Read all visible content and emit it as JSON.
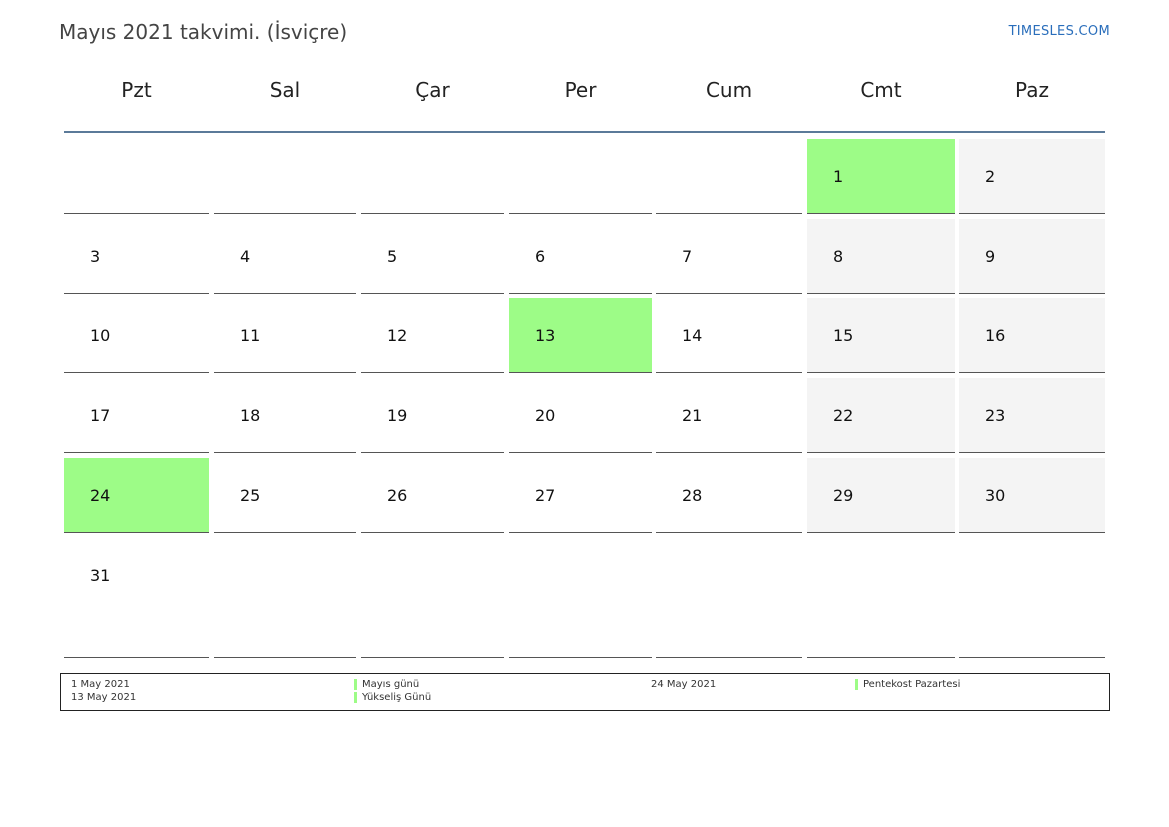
{
  "header": {
    "title": "Mayıs 2021 takvimi. (İsviçre)",
    "brand": "TIMESLES.COM"
  },
  "weekdays": [
    "Pzt",
    "Sal",
    "Çar",
    "Per",
    "Cum",
    "Cmt",
    "Paz"
  ],
  "weeks": [
    [
      null,
      null,
      null,
      null,
      null,
      1,
      2
    ],
    [
      3,
      4,
      5,
      6,
      7,
      8,
      9
    ],
    [
      10,
      11,
      12,
      13,
      14,
      15,
      16
    ],
    [
      17,
      18,
      19,
      20,
      21,
      22,
      23
    ],
    [
      24,
      25,
      26,
      27,
      28,
      29,
      30
    ],
    [
      31,
      null,
      null,
      null,
      null,
      null,
      null
    ]
  ],
  "holiday_days": [
    1,
    13,
    24
  ],
  "colors": {
    "holiday": "#9dfc87",
    "weekend": "#f4f4f4",
    "header_rule": "#5b7a99",
    "brand": "#2a6ebb"
  },
  "legend": {
    "rows": [
      {
        "left_date": "1 May 2021",
        "left_name": "Mayıs günü",
        "right_date": "24 May 2021",
        "right_name": "Pentekost Pazartesi"
      },
      {
        "left_date": "13 May 2021",
        "left_name": "Yükseliş Günü",
        "right_date": "",
        "right_name": ""
      }
    ]
  }
}
